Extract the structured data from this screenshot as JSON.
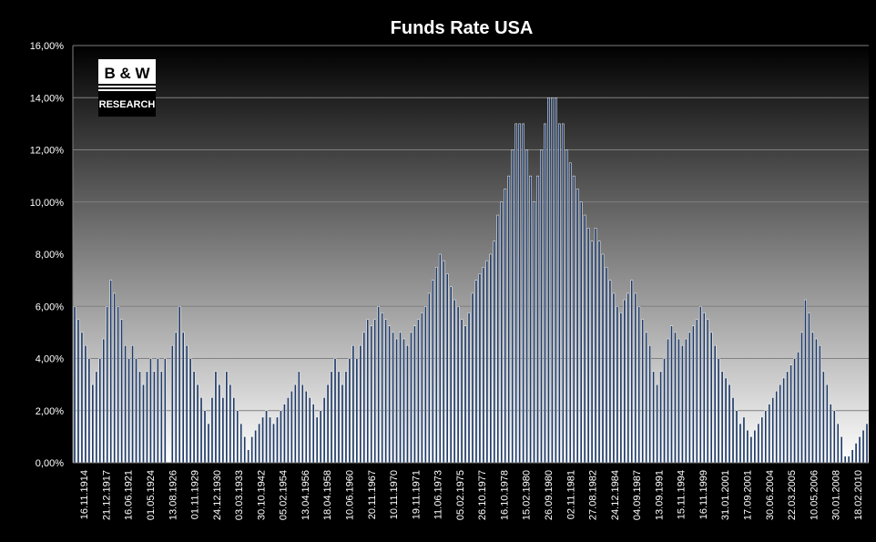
{
  "logo": {
    "main": "B & W",
    "sub": "RESEARCH"
  },
  "colors": {
    "background": "#000000",
    "bar_fill": "#1f3a66",
    "bar_stroke": "#ffffff",
    "plot_top": "#000000",
    "plot_bottom": "#ffffff",
    "gridline": "#808080"
  },
  "chart_data": {
    "type": "bar",
    "title": "Funds Rate USA",
    "xlabel": "",
    "ylabel": "",
    "ylim": [
      0,
      16
    ],
    "y_ticks": [
      "0,00%",
      "2,00%",
      "4,00%",
      "6,00%",
      "8,00%",
      "10,00%",
      "12,00%",
      "14,00%",
      "16,00%"
    ],
    "y_tick_values": [
      0,
      2,
      4,
      6,
      8,
      10,
      12,
      14,
      16
    ],
    "grid": true,
    "legend": "none",
    "x_tick_labels": [
      "16.11.1914",
      "21.12.1917",
      "16.06.1921",
      "01.05.1924",
      "13.08.1926",
      "01.11.1929",
      "24.12.1930",
      "03.03.1933",
      "30.10.1942",
      "05.02.1954",
      "13.04.1956",
      "18.04.1958",
      "10.06.1960",
      "20.11.1967",
      "10.11.1970",
      "19.11.1971",
      "11.06.1973",
      "05.02.1975",
      "26.10.1977",
      "16.10.1978",
      "15.02.1980",
      "26.09.1980",
      "02.11.1981",
      "27.08.1982",
      "24.12.1984",
      "04.09.1987",
      "13.09.1991",
      "15.11.1994",
      "16.11.1999",
      "31.01.2001",
      "17.09.2001",
      "30.06.2004",
      "22.03.2005",
      "10.05.2006",
      "30.01.2008",
      "18.02.2010"
    ],
    "values": [
      6,
      5.5,
      5,
      4.5,
      4,
      3,
      3.5,
      4,
      4.75,
      6,
      7,
      6.5,
      6,
      5.5,
      4.5,
      4,
      4.5,
      4,
      3.5,
      3,
      3.5,
      4,
      3.5,
      4,
      3.5,
      4,
      0,
      4.5,
      5,
      6,
      5,
      4.5,
      4,
      3.5,
      3,
      2.5,
      2,
      1.5,
      2.5,
      3.5,
      3,
      2.5,
      3.5,
      3,
      2.5,
      2,
      1.5,
      1,
      0.5,
      1,
      1.25,
      1.5,
      1.75,
      2,
      1.75,
      1.5,
      1.75,
      2,
      2.25,
      2.5,
      2.75,
      3,
      3.5,
      3,
      2.75,
      2.5,
      2.25,
      1.75,
      2,
      2.5,
      3,
      3.5,
      4,
      3.5,
      3,
      3.5,
      4,
      4.5,
      4,
      4.5,
      5,
      5.5,
      5.25,
      5.5,
      6,
      5.75,
      5.5,
      5.25,
      5,
      4.75,
      5,
      4.75,
      4.5,
      5,
      5.25,
      5.5,
      5.75,
      6,
      6.5,
      7,
      7.5,
      8,
      7.75,
      7.25,
      6.75,
      6.25,
      6,
      5.5,
      5.25,
      5.75,
      6.5,
      7,
      7.25,
      7.5,
      7.75,
      8,
      8.5,
      9.5,
      10,
      10.5,
      11,
      12,
      13,
      13,
      13,
      12,
      11,
      10,
      11,
      12,
      13,
      14,
      14,
      14,
      13,
      13,
      12,
      11.5,
      11,
      10.5,
      10,
      9.5,
      9,
      8.5,
      9,
      8.5,
      8,
      7.5,
      7,
      6.5,
      6,
      5.75,
      6.25,
      6.5,
      7,
      6.5,
      6,
      5.5,
      5,
      4.5,
      3.5,
      3,
      3.5,
      4,
      4.75,
      5.25,
      5,
      4.75,
      4.5,
      4.75,
      5,
      5.25,
      5.5,
      6,
      5.75,
      5.5,
      5,
      4.5,
      4,
      3.5,
      3.25,
      3,
      2.5,
      2,
      1.5,
      1.75,
      1.25,
      1,
      1.25,
      1.5,
      1.75,
      2,
      2.25,
      2.5,
      2.75,
      3,
      3.25,
      3.5,
      3.75,
      4,
      4.25,
      5,
      6.25,
      5.75,
      5,
      4.75,
      4.5,
      3.5,
      3,
      2.25,
      2,
      1.5,
      1,
      0.25,
      0.25,
      0.5,
      0.75,
      1,
      1.25,
      1.5
    ]
  }
}
